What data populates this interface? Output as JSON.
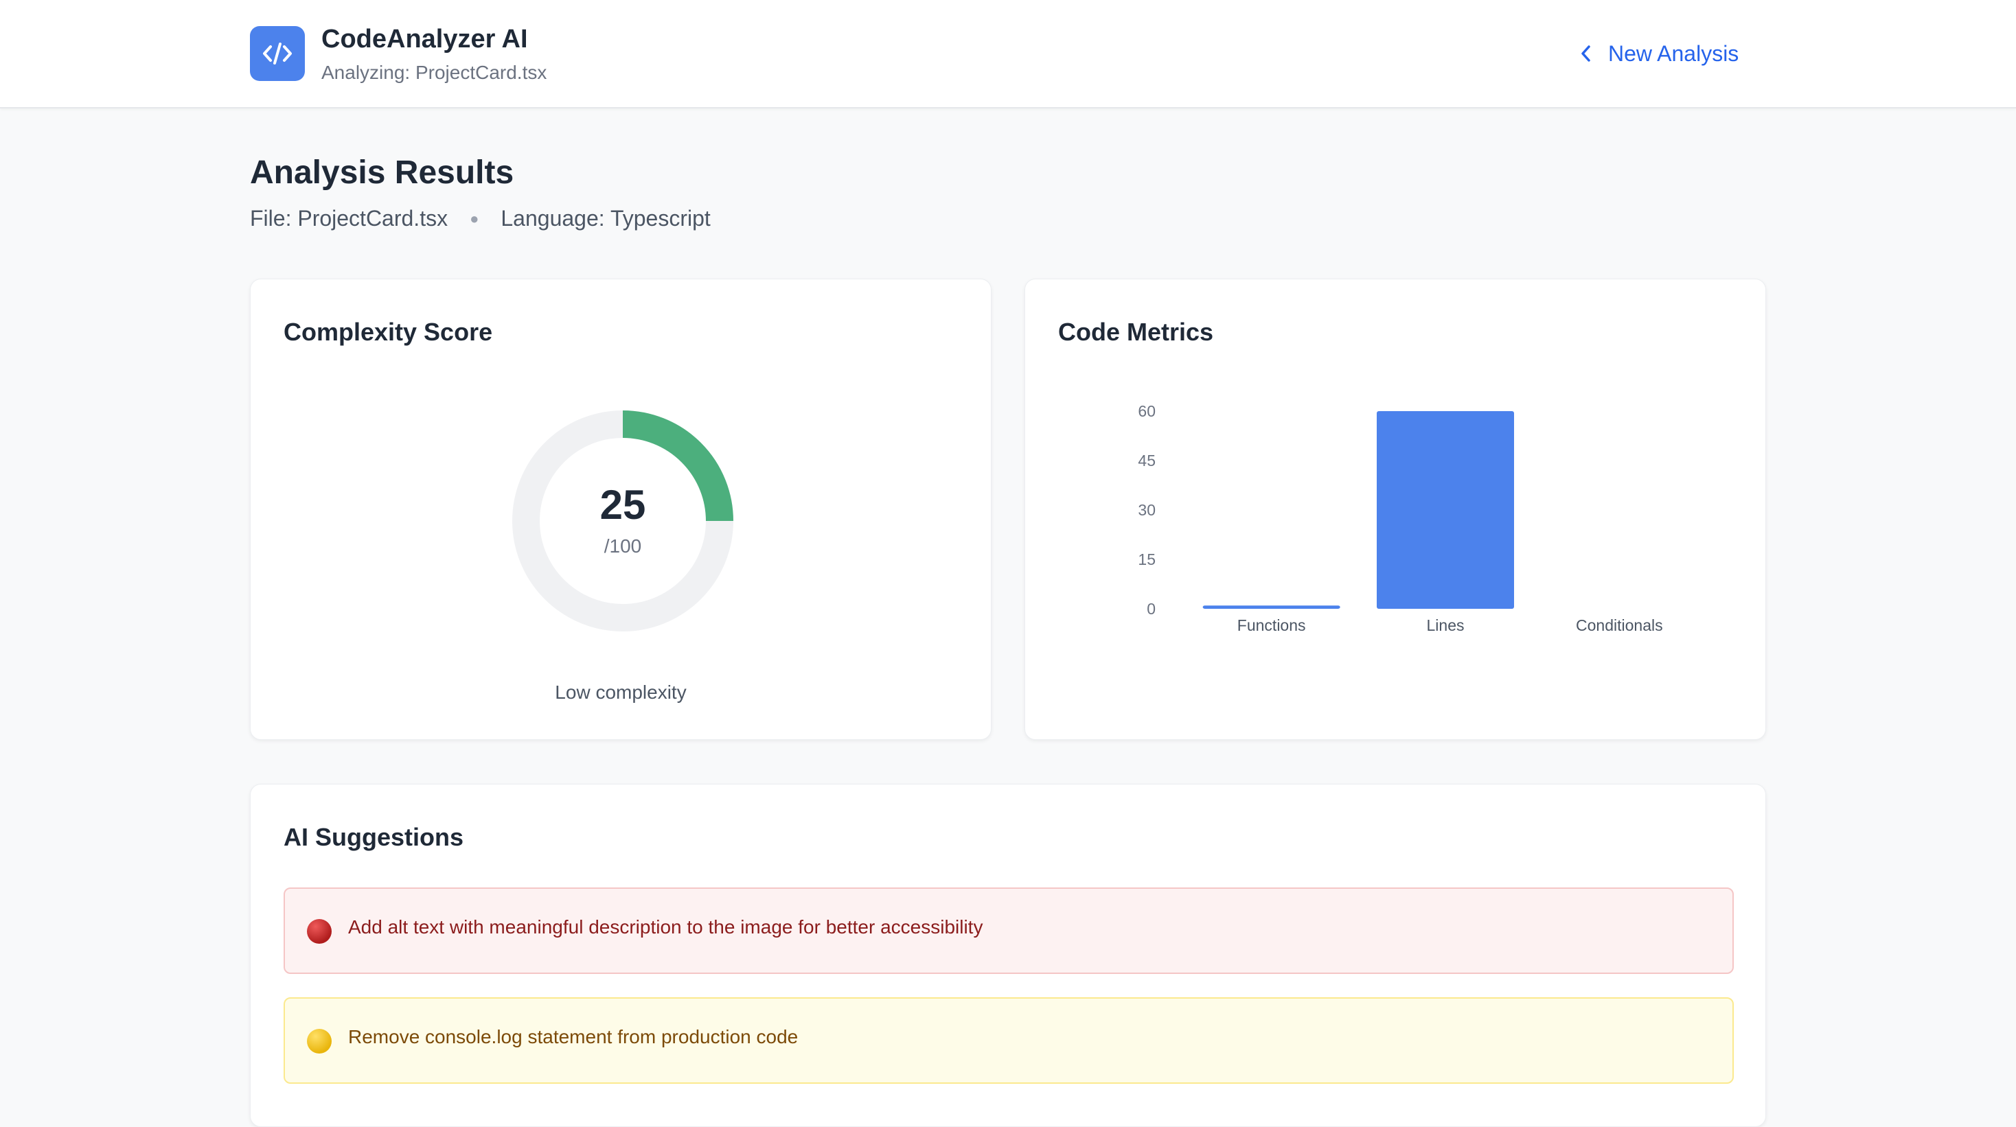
{
  "header": {
    "app_name": "CodeAnalyzer AI",
    "subtitle": "Analyzing: ProjectCard.tsx",
    "new_analysis_label": "New Analysis",
    "logo_icon": "code-icon",
    "accent_color": "#4c82ec",
    "link_color": "#2563eb"
  },
  "page": {
    "title": "Analysis Results",
    "file_label": "File: ProjectCard.tsx",
    "language_label": "Language: Typescript"
  },
  "complexity": {
    "title": "Complexity Score",
    "score": 25,
    "score_text": "25",
    "max_text": "/100",
    "label": "Low complexity",
    "arc_color": "#4caf7d",
    "track_color": "#f0f1f3"
  },
  "metrics": {
    "title": "Code Metrics",
    "chart_data": {
      "type": "bar",
      "categories": [
        "Functions",
        "Lines",
        "Conditionals"
      ],
      "values": [
        1,
        60,
        0
      ],
      "ylim": [
        0,
        60
      ],
      "yticks": [
        0,
        15,
        30,
        45,
        60
      ],
      "ytick_labels": [
        "0",
        "15",
        "30",
        "45",
        "60"
      ],
      "bar_color": "#4c82ec",
      "grid": false,
      "title": "",
      "xlabel": "",
      "ylabel": ""
    }
  },
  "suggestions": {
    "title": "AI Suggestions",
    "items": [
      {
        "severity": "high",
        "text": "Add alt text with meaningful description to the image for better accessibility"
      },
      {
        "severity": "medium",
        "text": "Remove console.log statement from production code"
      }
    ]
  }
}
